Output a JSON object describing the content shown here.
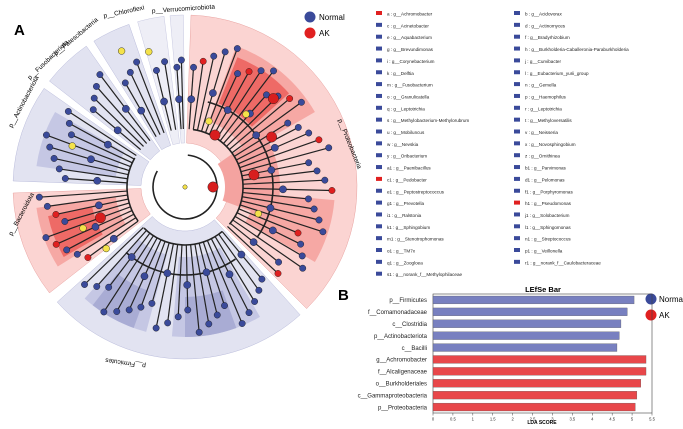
{
  "panel_a": {
    "label": "A",
    "legend": [
      {
        "name": "Normal",
        "color": "#3a4a9a"
      },
      {
        "name": "AK",
        "color": "#e02020"
      }
    ],
    "clade_labels": [
      "p__Proteobacteria",
      "p__Firmicutes",
      "p__Bacteroidota",
      "p__Actinobacteriota",
      "p__Fusobacteriota",
      "p__Patescibacteria",
      "p__Chloroflexi",
      "p__Verrucomicrobiota"
    ],
    "key": [
      {
        "code": "a : g__Achromobacter",
        "group": "AK"
      },
      {
        "code": "b : g__Acidovorax",
        "group": "Normal"
      },
      {
        "code": "c : g__Acinetobacter",
        "group": "Normal"
      },
      {
        "code": "d : g__Actinomyces",
        "group": "Normal"
      },
      {
        "code": "e : g__Aquabacterium",
        "group": "Normal"
      },
      {
        "code": "f : g__Bradyrhizobium",
        "group": "Normal"
      },
      {
        "code": "g : g__Brevundimonas",
        "group": "Normal"
      },
      {
        "code": "h : g__Burkholderia-Caballeronia-Paraburkholderia",
        "group": "Normal"
      },
      {
        "code": "i : g__Corynebacterium",
        "group": "Normal"
      },
      {
        "code": "j : g__Curvibacter",
        "group": "Normal"
      },
      {
        "code": "k : g__Delftia",
        "group": "Normal"
      },
      {
        "code": "l : g__Eubacterium_yurii_group",
        "group": "Normal"
      },
      {
        "code": "m : g__Fusobacterium",
        "group": "Normal"
      },
      {
        "code": "n : g__Gemella",
        "group": "Normal"
      },
      {
        "code": "o : g__Granulicatella",
        "group": "Normal"
      },
      {
        "code": "p : g__Haemophilus",
        "group": "Normal"
      },
      {
        "code": "q : g__Leptotrichia",
        "group": "Normal"
      },
      {
        "code": "r : g__Leptotrichia",
        "group": "Normal"
      },
      {
        "code": "s : g__Methylobacterium-Methylorubrum",
        "group": "Normal"
      },
      {
        "code": "t : g__Methyloversatilis",
        "group": "Normal"
      },
      {
        "code": "u : g__Mobiluncus",
        "group": "Normal"
      },
      {
        "code": "v : g__Neisseria",
        "group": "Normal"
      },
      {
        "code": "w : g__Nevskia",
        "group": "Normal"
      },
      {
        "code": "x : g__Novosphingobium",
        "group": "Normal"
      },
      {
        "code": "y : g__Oribacterium",
        "group": "Normal"
      },
      {
        "code": "z : g__Ornithinea",
        "group": "Normal"
      },
      {
        "code": "a1 : g__Paenibacillus",
        "group": "Normal"
      },
      {
        "code": "b1 : g__Parvimonas",
        "group": "Normal"
      },
      {
        "code": "c1 : g__Pedobacter",
        "group": "AK"
      },
      {
        "code": "d1 : g__Pelomonas",
        "group": "Normal"
      },
      {
        "code": "e1 : g__Peptostreptococcus",
        "group": "Normal"
      },
      {
        "code": "f1 : g__Porphyromonas",
        "group": "Normal"
      },
      {
        "code": "g1 : g__Prevotella",
        "group": "Normal"
      },
      {
        "code": "h1 : g__Pseudomonas",
        "group": "AK"
      },
      {
        "code": "i1 : g__Ralstonia",
        "group": "Normal"
      },
      {
        "code": "j1 : g__Solobacterium",
        "group": "Normal"
      },
      {
        "code": "k1 : g__Sphingobium",
        "group": "Normal"
      },
      {
        "code": "l1 : g__Sphingomonas",
        "group": "Normal"
      },
      {
        "code": "m1 : g__Stenotrophomonas",
        "group": "Normal"
      },
      {
        "code": "n1 : g__Streptococcus",
        "group": "Normal"
      },
      {
        "code": "o1 : g__TM7x",
        "group": "Normal"
      },
      {
        "code": "p1 : g__Veillonella",
        "group": "Normal"
      },
      {
        "code": "q1 : g__Zoogloea",
        "group": "Normal"
      },
      {
        "code": "r1 : g__norank_f__Caulobacteraceae",
        "group": "Normal"
      },
      {
        "code": "s1 : g__norank_f__Methylophilaceae",
        "group": "Normal"
      }
    ]
  },
  "panel_b": {
    "label": "B",
    "legend": [
      {
        "name": "Normal",
        "color": "#3a4a9a"
      },
      {
        "name": "AK",
        "color": "#e02020"
      }
    ],
    "chart_data": {
      "type": "bar",
      "orientation": "horizontal",
      "title": "LEfSe Bar",
      "xlabel": "LDA SCORE",
      "ylabel": "",
      "xlim": [
        0,
        5.5
      ],
      "ticks": [
        "0",
        "0.5",
        "1",
        "1.5",
        "2",
        "2.5",
        "3",
        "3.5",
        "4",
        "4.5",
        "5",
        "5.5"
      ],
      "categories": [
        "p__Firmicutes",
        "f__Comamonadaceae",
        "c__Clostridia",
        "p__Actinobacteriota",
        "c__Bacilli",
        "g__Achromobacter",
        "f__Alcaligenaceae",
        "o__Burkholderiales",
        "c__Gammaproteobacteria",
        "p__Proteobacteria"
      ],
      "values": [
        5.05,
        4.88,
        4.72,
        4.68,
        4.62,
        5.35,
        5.35,
        5.22,
        5.12,
        5.08
      ],
      "groups": [
        "Normal",
        "Normal",
        "Normal",
        "Normal",
        "Normal",
        "AK",
        "AK",
        "AK",
        "AK",
        "AK"
      ],
      "colors": {
        "Normal": "#7880c0",
        "AK": "#e8474a"
      }
    }
  }
}
